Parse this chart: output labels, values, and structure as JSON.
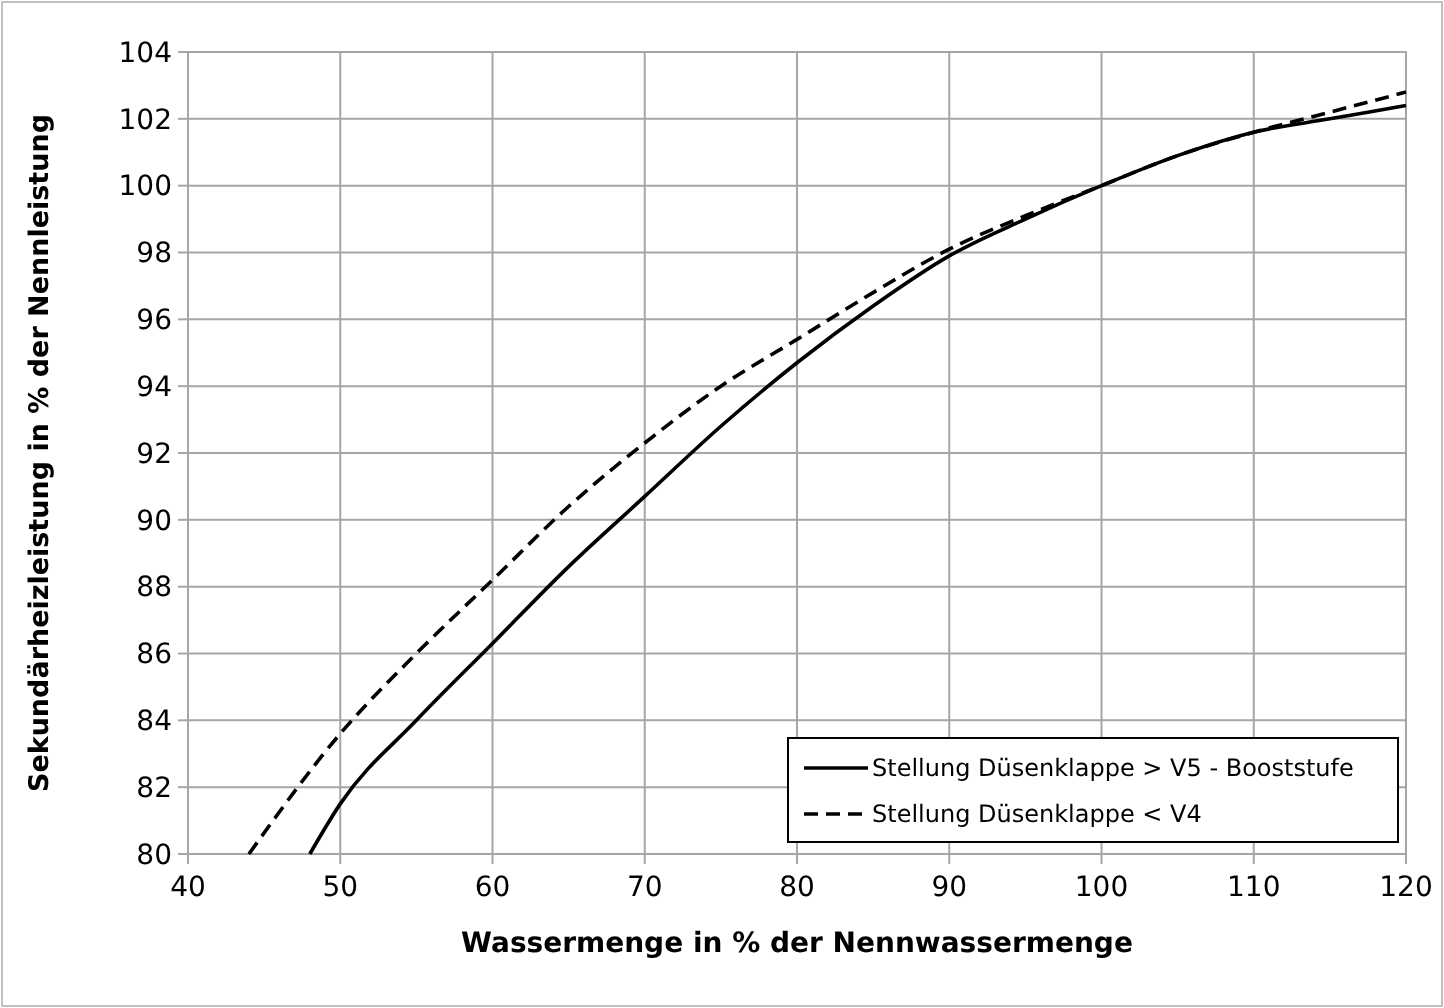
{
  "chart_data": {
    "type": "line",
    "xlabel": "Wassermenge in % der Nennwassermenge",
    "ylabel": "Sekundärheizleistung in % der Nennleistung",
    "xlim": [
      40,
      120
    ],
    "xticks": [
      40,
      50,
      60,
      70,
      80,
      90,
      100,
      110,
      120
    ],
    "ylim": [
      80,
      104
    ],
    "yticks": [
      80,
      82,
      84,
      86,
      88,
      90,
      92,
      94,
      96,
      98,
      100,
      102,
      104
    ],
    "grid": true,
    "legend": "bottom right",
    "marker": "none",
    "series": [
      {
        "name": "Stellung Düsenklappe > V5 - Booststufe",
        "color": "#000000",
        "line_style": "solid",
        "x": [
          48,
          50,
          55,
          60,
          65,
          70,
          75,
          80,
          85,
          90,
          95,
          100,
          105,
          110,
          115,
          120
        ],
        "values": [
          80,
          81.5,
          84,
          86.3,
          88.6,
          90.7,
          92.8,
          94.7,
          96.4,
          97.9,
          99.0,
          100,
          100.9,
          101.6,
          102.0,
          102.4
        ]
      },
      {
        "name": "Stellung Düsenklappe < V4",
        "color": "#000000",
        "line_style": "dashed",
        "x": [
          44,
          50,
          55,
          60,
          65,
          70,
          75,
          80,
          85,
          90,
          95,
          100,
          105,
          110,
          115,
          120
        ],
        "values": [
          80,
          83.6,
          86,
          88.2,
          90.4,
          92.3,
          94,
          95.4,
          96.8,
          98.1,
          99.1,
          100,
          100.9,
          101.6,
          102.2,
          102.8
        ]
      }
    ]
  }
}
